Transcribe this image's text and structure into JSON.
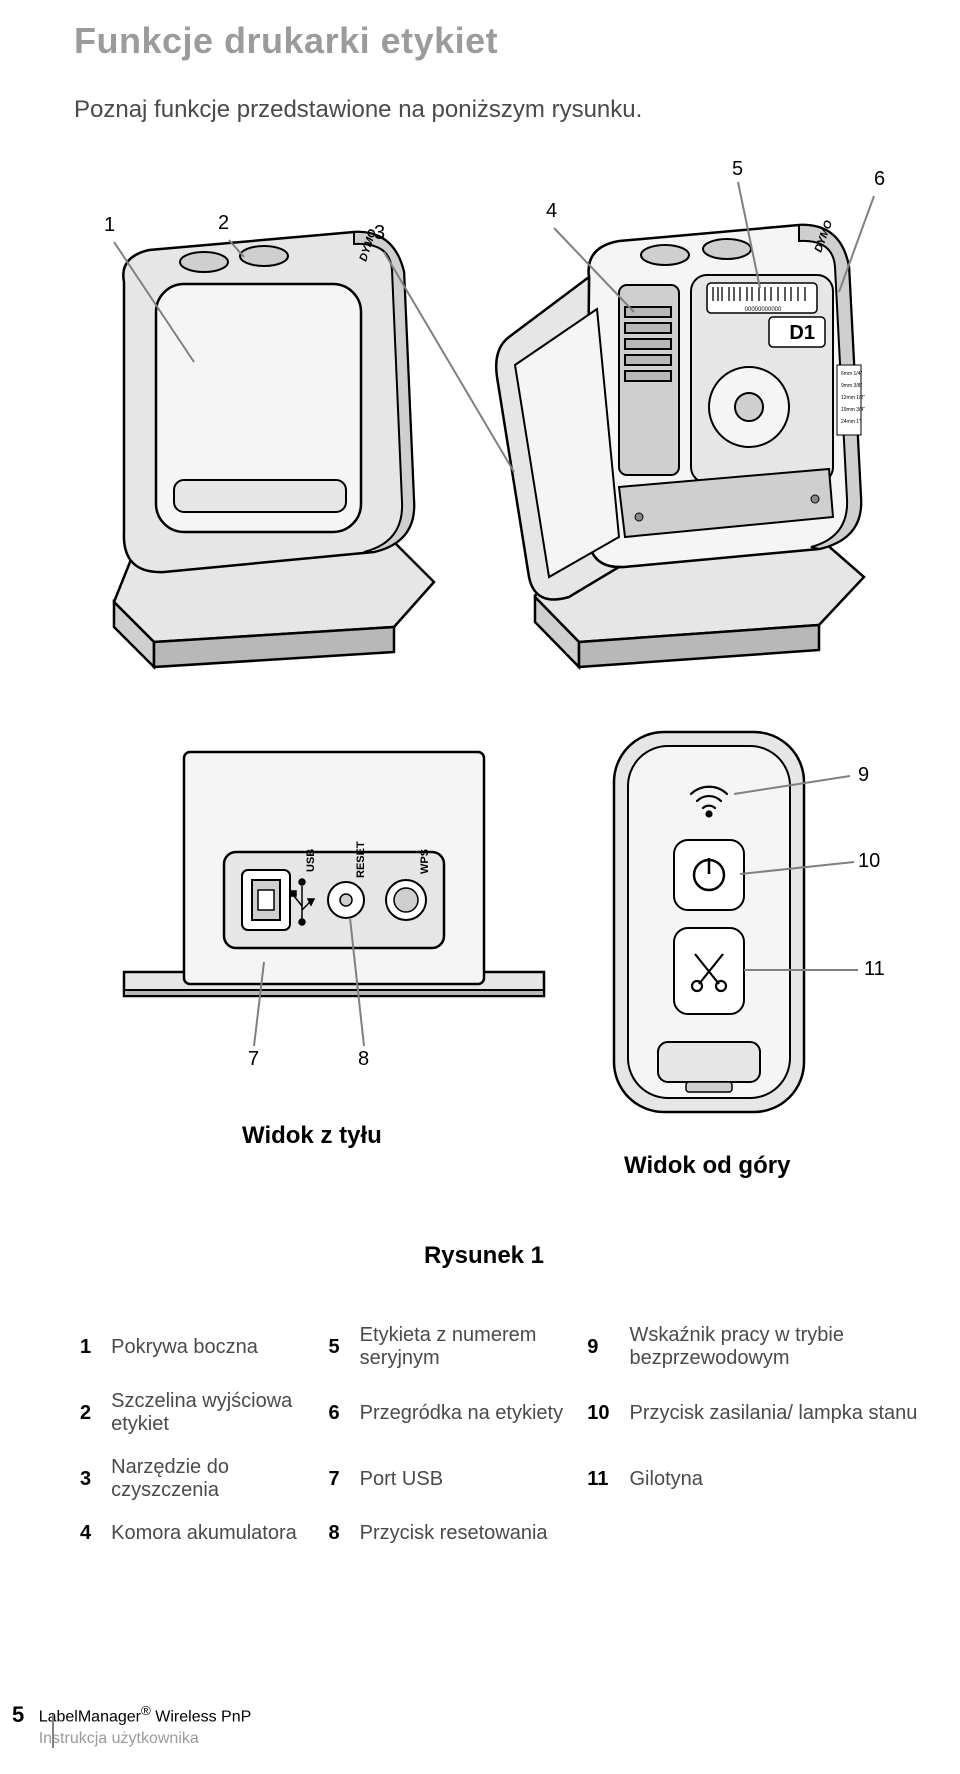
{
  "title": "Funkcje drukarki etykiet",
  "subtitle": "Poznaj funkcje przedstawione na poniższym rysunku.",
  "callouts_top": {
    "c1": "1",
    "c2": "2",
    "c3": "3",
    "c4": "4",
    "c5": "5",
    "c6": "6"
  },
  "callouts_bottom": {
    "c7": "7",
    "c8": "8",
    "c9": "9",
    "c10": "10",
    "c11": "11"
  },
  "rear_label": "Widok z tyłu",
  "top_label": "Widok od góry",
  "figure_label": "Rysunek 1",
  "port_labels": {
    "usb": "USB",
    "reset": "RESET",
    "wps": "WPS"
  },
  "device_text": {
    "brand": "DYMO",
    "cart": "D1"
  },
  "legend": {
    "rows": [
      [
        {
          "n": "1",
          "l": "Pokrywa boczna"
        },
        {
          "n": "5",
          "l": "Etykieta z numerem seryjnym"
        },
        {
          "n": "9",
          "l": "Wskaźnik pracy w trybie bezprzewodowym"
        }
      ],
      [
        {
          "n": "2",
          "l": "Szczelina wyjściowa etykiet"
        },
        {
          "n": "6",
          "l": "Przegródka na etykiety"
        },
        {
          "n": "10",
          "l": "Przycisk zasilania/ lampka stanu"
        }
      ],
      [
        {
          "n": "3",
          "l": "Narzędzie do czyszczenia"
        },
        {
          "n": "7",
          "l": "Port USB"
        },
        {
          "n": "11",
          "l": "Gilotyna"
        }
      ],
      [
        {
          "n": "4",
          "l": "Komora akumulatora"
        },
        {
          "n": "8",
          "l": "Przycisk resetowania"
        },
        {
          "n": "",
          "l": ""
        }
      ]
    ]
  },
  "footer": {
    "page": "5",
    "line1_a": "LabelManager",
    "line1_b": " Wireless PnP",
    "line2": "Instrukcja użytkownika",
    "reg": "®"
  },
  "diagram_style": {
    "stroke": "#000000",
    "fill_body": "#e6e6e6",
    "fill_light": "#f5f5f5",
    "fill_dark": "#b8b8b8",
    "fill_mid": "#cfcfcf",
    "line_w": 2.5
  }
}
